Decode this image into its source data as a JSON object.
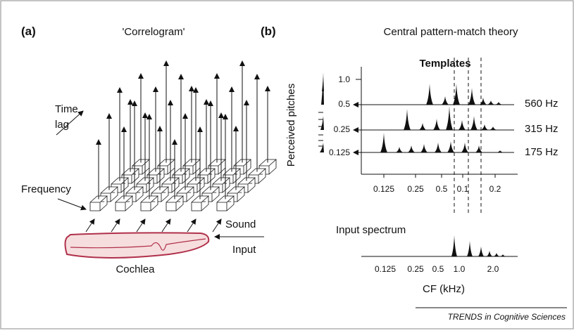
{
  "panel_a": {
    "label": "(a)",
    "title": "'Correlogram'",
    "time_lag": [
      "Time",
      "lag"
    ],
    "frequency": "Frequency",
    "sound_input": [
      "Sound",
      "Input"
    ],
    "cochlea": "Cochlea"
  },
  "panel_b": {
    "label": "(b)",
    "title": "Central pattern-match theory",
    "templates": "Templates",
    "y_label": "Perceived pitches",
    "levels": [
      "1.0",
      "0.5",
      "0.25",
      "0.125"
    ],
    "rows": [
      "560  Hz",
      "315 Hz",
      "175 Hz"
    ],
    "top_axis": [
      "0.125",
      "0.25",
      "0.5",
      "0.1",
      "0.2"
    ],
    "input_spectrum": "Input spectrum",
    "bottom_axis": [
      "0.125",
      "0.25",
      "0.5",
      "1.0",
      "2.0"
    ],
    "x_label": "CF (kHz)"
  },
  "footer": "TRENDS in Cognitive Sciences"
}
